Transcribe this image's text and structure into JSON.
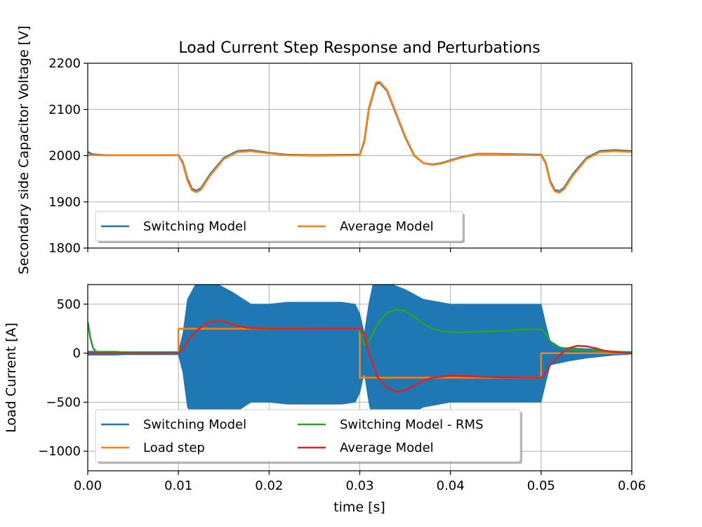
{
  "figure": {
    "title": "Load Current Step Response and Perturbations",
    "xlabel": "time [s]"
  },
  "colors": {
    "blue": "#1f77b4",
    "orange": "#ff7f0e",
    "green": "#2ca02c",
    "red": "#d62728",
    "grid": "#b0b0b0"
  },
  "chart_data": [
    {
      "type": "line",
      "title": "Load Current Step Response and Perturbations",
      "xlabel": "",
      "ylabel": "Secondary side Capacitor Voltage [V]",
      "xlim": [
        0,
        0.06
      ],
      "ylim": [
        1800,
        2200
      ],
      "xticks": [
        0.0,
        0.01,
        0.02,
        0.03,
        0.04,
        0.05,
        0.06
      ],
      "xticklabels": [
        "",
        "",
        "",
        "",
        "",
        "",
        ""
      ],
      "yticks": [
        1800,
        1900,
        2000,
        2100,
        2200
      ],
      "yticklabels": [
        "1800",
        "1900",
        "2000",
        "2100",
        "2200"
      ],
      "grid": true,
      "legend": {
        "placement": "lower-left",
        "columns": 2
      },
      "series": [
        {
          "name": "Switching Model",
          "color": "#1f77b4",
          "points": [
            [
              0,
              2008
            ],
            [
              0.0005,
              2003
            ],
            [
              0.002,
              2001
            ],
            [
              0.01,
              2001
            ],
            [
              0.0105,
              1985
            ],
            [
              0.011,
              1950
            ],
            [
              0.0115,
              1928
            ],
            [
              0.012,
              1924
            ],
            [
              0.0125,
              1930
            ],
            [
              0.0135,
              1960
            ],
            [
              0.015,
              1995
            ],
            [
              0.0165,
              2010
            ],
            [
              0.018,
              2012
            ],
            [
              0.02,
              2006
            ],
            [
              0.022,
              2002
            ],
            [
              0.025,
              2001
            ],
            [
              0.03,
              2002
            ],
            [
              0.0305,
              2030
            ],
            [
              0.031,
              2100
            ],
            [
              0.0318,
              2155
            ],
            [
              0.0322,
              2158
            ],
            [
              0.033,
              2140
            ],
            [
              0.034,
              2090
            ],
            [
              0.035,
              2040
            ],
            [
              0.036,
              2000
            ],
            [
              0.037,
              1984
            ],
            [
              0.038,
              1981
            ],
            [
              0.039,
              1984
            ],
            [
              0.041,
              1996
            ],
            [
              0.043,
              2004
            ],
            [
              0.045,
              2004
            ],
            [
              0.05,
              2002
            ],
            [
              0.0505,
              1985
            ],
            [
              0.051,
              1945
            ],
            [
              0.0515,
              1926
            ],
            [
              0.052,
              1923
            ],
            [
              0.0525,
              1930
            ],
            [
              0.0535,
              1960
            ],
            [
              0.055,
              1995
            ],
            [
              0.0565,
              2010
            ],
            [
              0.058,
              2012
            ],
            [
              0.06,
              2010
            ]
          ]
        },
        {
          "name": "Average Model",
          "color": "#ff7f0e",
          "points": [
            [
              0,
              2001
            ],
            [
              0.01,
              2001
            ],
            [
              0.0105,
              1982
            ],
            [
              0.011,
              1946
            ],
            [
              0.0115,
              1925
            ],
            [
              0.012,
              1921
            ],
            [
              0.0125,
              1927
            ],
            [
              0.0135,
              1957
            ],
            [
              0.015,
              1993
            ],
            [
              0.0165,
              2008
            ],
            [
              0.018,
              2010
            ],
            [
              0.02,
              2005
            ],
            [
              0.022,
              2001
            ],
            [
              0.025,
              2000
            ],
            [
              0.03,
              2001
            ],
            [
              0.0305,
              2033
            ],
            [
              0.031,
              2103
            ],
            [
              0.0318,
              2158
            ],
            [
              0.0322,
              2160
            ],
            [
              0.033,
              2142
            ],
            [
              0.034,
              2092
            ],
            [
              0.035,
              2042
            ],
            [
              0.036,
              2001
            ],
            [
              0.037,
              1984
            ],
            [
              0.038,
              1980
            ],
            [
              0.039,
              1983
            ],
            [
              0.041,
              1995
            ],
            [
              0.043,
              2003
            ],
            [
              0.045,
              2003
            ],
            [
              0.05,
              2001
            ],
            [
              0.0505,
              1983
            ],
            [
              0.051,
              1942
            ],
            [
              0.0515,
              1923
            ],
            [
              0.052,
              1920
            ],
            [
              0.0525,
              1927
            ],
            [
              0.0535,
              1957
            ],
            [
              0.055,
              1993
            ],
            [
              0.0565,
              2008
            ],
            [
              0.058,
              2010
            ],
            [
              0.06,
              2008
            ]
          ]
        }
      ]
    },
    {
      "type": "line",
      "title": "",
      "xlabel": "time [s]",
      "ylabel": "Load Current [A]",
      "xlim": [
        0,
        0.06
      ],
      "ylim": [
        -1200,
        700
      ],
      "xticks": [
        0.0,
        0.01,
        0.02,
        0.03,
        0.04,
        0.05,
        0.06
      ],
      "xticklabels": [
        "0.00",
        "0.01",
        "0.02",
        "0.03",
        "0.04",
        "0.05",
        "0.06"
      ],
      "yticks": [
        -1000,
        -500,
        0,
        500
      ],
      "yticklabels": [
        "−1000",
        "−500",
        "0",
        "500"
      ],
      "grid": true,
      "legend": {
        "placement": "lower-left",
        "columns": 2
      },
      "series": [
        {
          "name": "Switching Model",
          "color": "#1f77b4",
          "kind": "envelope",
          "upper": [
            [
              0,
              20
            ],
            [
              0.003,
              20
            ],
            [
              0.004,
              15
            ],
            [
              0.01,
              15
            ],
            [
              0.0105,
              200
            ],
            [
              0.011,
              550
            ],
            [
              0.012,
              720
            ],
            [
              0.014,
              720
            ],
            [
              0.016,
              620
            ],
            [
              0.018,
              500
            ],
            [
              0.02,
              500
            ],
            [
              0.022,
              520
            ],
            [
              0.025,
              520
            ],
            [
              0.028,
              520
            ],
            [
              0.0295,
              500
            ],
            [
              0.03,
              400
            ],
            [
              0.0305,
              200
            ],
            [
              0.031,
              500
            ],
            [
              0.0315,
              720
            ],
            [
              0.033,
              720
            ],
            [
              0.035,
              650
            ],
            [
              0.037,
              550
            ],
            [
              0.04,
              500
            ],
            [
              0.045,
              500
            ],
            [
              0.05,
              500
            ],
            [
              0.0505,
              300
            ],
            [
              0.051,
              120
            ],
            [
              0.052,
              60
            ],
            [
              0.054,
              50
            ],
            [
              0.056,
              40
            ],
            [
              0.058,
              20
            ],
            [
              0.06,
              10
            ]
          ],
          "lower": [
            [
              0,
              -20
            ],
            [
              0.003,
              -20
            ],
            [
              0.004,
              -15
            ],
            [
              0.01,
              -15
            ],
            [
              0.0105,
              -200
            ],
            [
              0.011,
              -550
            ],
            [
              0.012,
              -720
            ],
            [
              0.014,
              -720
            ],
            [
              0.016,
              -620
            ],
            [
              0.018,
              -500
            ],
            [
              0.02,
              -500
            ],
            [
              0.022,
              -520
            ],
            [
              0.025,
              -520
            ],
            [
              0.028,
              -520
            ],
            [
              0.0295,
              -500
            ],
            [
              0.03,
              -400
            ],
            [
              0.0305,
              -200
            ],
            [
              0.031,
              -500
            ],
            [
              0.0315,
              -720
            ],
            [
              0.033,
              -720
            ],
            [
              0.035,
              -650
            ],
            [
              0.037,
              -550
            ],
            [
              0.04,
              -500
            ],
            [
              0.045,
              -500
            ],
            [
              0.05,
              -500
            ],
            [
              0.0505,
              -300
            ],
            [
              0.051,
              -120
            ],
            [
              0.052,
              -100
            ],
            [
              0.053,
              -80
            ],
            [
              0.055,
              -50
            ],
            [
              0.058,
              -20
            ],
            [
              0.06,
              -10
            ]
          ]
        },
        {
          "name": "Load step",
          "color": "#ff7f0e",
          "points": [
            [
              0,
              0
            ],
            [
              0.01,
              0
            ],
            [
              0.01,
              250
            ],
            [
              0.03,
              250
            ],
            [
              0.03,
              -250
            ],
            [
              0.05,
              -250
            ],
            [
              0.05,
              0
            ],
            [
              0.06,
              0
            ]
          ]
        },
        {
          "name": "Switching Model - RMS",
          "color": "#2ca02c",
          "points": [
            [
              0,
              320
            ],
            [
              0.0003,
              150
            ],
            [
              0.0006,
              50
            ],
            [
              0.001,
              10
            ],
            [
              0.01,
              5
            ],
            [
              0.0105,
              40
            ],
            [
              0.011,
              120
            ],
            [
              0.012,
              230
            ],
            [
              0.013,
              300
            ],
            [
              0.014,
              335
            ],
            [
              0.015,
              330
            ],
            [
              0.016,
              300
            ],
            [
              0.017,
              270
            ],
            [
              0.018,
              255
            ],
            [
              0.02,
              252
            ],
            [
              0.025,
              250
            ],
            [
              0.03,
              250
            ],
            [
              0.0305,
              80
            ],
            [
              0.031,
              120
            ],
            [
              0.032,
              300
            ],
            [
              0.033,
              410
            ],
            [
              0.034,
              445
            ],
            [
              0.035,
              430
            ],
            [
              0.036,
              370
            ],
            [
              0.037,
              300
            ],
            [
              0.038,
              250
            ],
            [
              0.039,
              225
            ],
            [
              0.04,
              215
            ],
            [
              0.042,
              215
            ],
            [
              0.045,
              225
            ],
            [
              0.048,
              240
            ],
            [
              0.05,
              245
            ],
            [
              0.0505,
              200
            ],
            [
              0.051,
              120
            ],
            [
              0.052,
              60
            ],
            [
              0.053,
              40
            ],
            [
              0.055,
              30
            ],
            [
              0.057,
              20
            ],
            [
              0.06,
              10
            ]
          ]
        },
        {
          "name": "Average Model",
          "color": "#d62728",
          "points": [
            [
              0,
              0
            ],
            [
              0.01,
              0
            ],
            [
              0.0105,
              40
            ],
            [
              0.011,
              120
            ],
            [
              0.012,
              230
            ],
            [
              0.013,
              300
            ],
            [
              0.014,
              330
            ],
            [
              0.015,
              325
            ],
            [
              0.016,
              295
            ],
            [
              0.017,
              268
            ],
            [
              0.018,
              255
            ],
            [
              0.02,
              250
            ],
            [
              0.025,
              250
            ],
            [
              0.03,
              250
            ],
            [
              0.0305,
              200
            ],
            [
              0.031,
              0
            ],
            [
              0.032,
              -250
            ],
            [
              0.033,
              -350
            ],
            [
              0.034,
              -395
            ],
            [
              0.035,
              -380
            ],
            [
              0.036,
              -330
            ],
            [
              0.037,
              -280
            ],
            [
              0.038,
              -250
            ],
            [
              0.04,
              -230
            ],
            [
              0.042,
              -235
            ],
            [
              0.045,
              -245
            ],
            [
              0.048,
              -250
            ],
            [
              0.05,
              -250
            ],
            [
              0.0505,
              -200
            ],
            [
              0.051,
              -120
            ],
            [
              0.052,
              -20
            ],
            [
              0.053,
              50
            ],
            [
              0.054,
              75
            ],
            [
              0.055,
              70
            ],
            [
              0.056,
              50
            ],
            [
              0.057,
              25
            ],
            [
              0.058,
              10
            ],
            [
              0.06,
              0
            ]
          ]
        }
      ]
    }
  ]
}
